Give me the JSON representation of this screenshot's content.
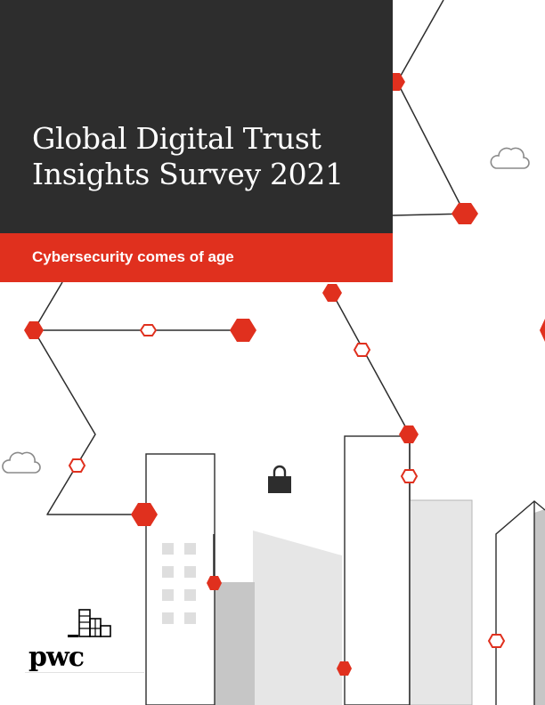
{
  "cover": {
    "title_line1": "Global Digital Trust",
    "title_line2": "Insights Survey 2021",
    "subtitle": "Cybersecurity comes of age"
  },
  "brand": {
    "logo_text": "pwc",
    "accent_color": "#e0301e",
    "dark_color": "#2d2d2d"
  },
  "icons": [
    "cloud-icon",
    "padlock-icon",
    "building-icon"
  ]
}
